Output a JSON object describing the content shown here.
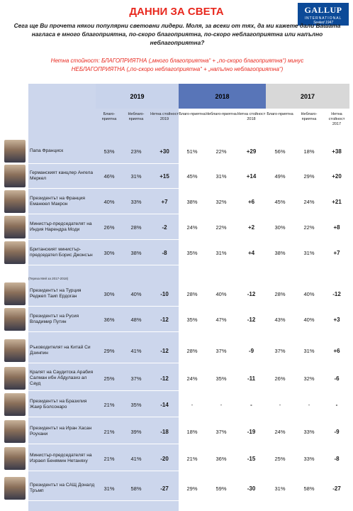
{
  "header": {
    "title": "ДАННИ ЗА СВЕТА",
    "logo": {
      "line1": "GALLUP",
      "line2": "INTERNATIONAL",
      "line3": "Sealed 1947"
    },
    "question": "Сега ще Ви прочета някои популярни световни лидери. Моля, за всеки от тях, да ми кажете дали Вашата нагласа е много благоприятна, по-скоро благоприятна, по-скоро неблагоприятна или напълно неблагоприятна?",
    "note_line1": "Нетна стойност: БЛАГОПРИЯТНА („много благоприятна“ + „по-скоро благоприятна“) минус",
    "note_line2": "НЕБЛАГОПРИЯТНА („по-скоро неблагоприятна“ + „напълно неблагоприятна“)"
  },
  "years": [
    "2019",
    "2018",
    "2017"
  ],
  "columns": {
    "fav": "Благо-приятна",
    "unfav": "Неблаго-приятна",
    "net2019": "Нетна стойност 2019",
    "net2018": "Нетна стойност 2018",
    "net2017": "Нетна стойност 2017"
  },
  "footnote": "(Тереза Мей за 2017-2018)",
  "leaders": [
    {
      "name": "Папа Франциск",
      "v": [
        "53%",
        "23%",
        "+30",
        "51%",
        "22%",
        "+29",
        "56%",
        "18%",
        "+38"
      ]
    },
    {
      "name": "Германският канцлер Ангела Меркел",
      "v": [
        "46%",
        "31%",
        "+15",
        "45%",
        "31%",
        "+14",
        "49%",
        "29%",
        "+20"
      ]
    },
    {
      "name": "Президентът на Франция Еманюел Макрон",
      "v": [
        "40%",
        "33%",
        "+7",
        "38%",
        "32%",
        "+6",
        "45%",
        "24%",
        "+21"
      ]
    },
    {
      "name": "Министър-председателят на Индия Нарендра Моди",
      "v": [
        "26%",
        "28%",
        "-2",
        "24%",
        "22%",
        "+2",
        "30%",
        "22%",
        "+8"
      ]
    },
    {
      "name": "Британският министър-председател Борис Джонсън",
      "v": [
        "30%",
        "38%",
        "-8",
        "35%",
        "31%",
        "+4",
        "38%",
        "31%",
        "+7"
      ]
    },
    {
      "name": "Президентът на Турция Реджеп Таип Ердоган",
      "v": [
        "30%",
        "40%",
        "-10",
        "28%",
        "40%",
        "-12",
        "28%",
        "40%",
        "-12"
      ]
    },
    {
      "name": "Президентът на Русия Владимир Путин",
      "v": [
        "36%",
        "48%",
        "-12",
        "35%",
        "47%",
        "-12",
        "43%",
        "40%",
        "+3"
      ]
    },
    {
      "name": "Ръководителят на Китай Си Дзинпин",
      "v": [
        "29%",
        "41%",
        "-12",
        "28%",
        "37%",
        "-9",
        "37%",
        "31%",
        "+6"
      ]
    },
    {
      "name": "Кралят на Саудитска Арабия Салман ибн Абдулазиз ал Сауд",
      "v": [
        "25%",
        "37%",
        "-12",
        "24%",
        "35%",
        "-11",
        "26%",
        "32%",
        "-6"
      ]
    },
    {
      "name": "Президентът на Бразилия Жаир Болсонаро",
      "v": [
        "21%",
        "35%",
        "-14",
        "-",
        "-",
        "-",
        "-",
        "-",
        "-"
      ]
    },
    {
      "name": "Президентът на Иран Хасан Роухани",
      "v": [
        "21%",
        "39%",
        "-18",
        "18%",
        "37%",
        "-19",
        "24%",
        "33%",
        "-9"
      ]
    },
    {
      "name": "Министър-председателят на Израел Бенямин Нетаняху",
      "v": [
        "21%",
        "41%",
        "-20",
        "21%",
        "36%",
        "-15",
        "25%",
        "33%",
        "-8"
      ]
    },
    {
      "name": "Президентът на САЩ Доналд Тръмп",
      "v": [
        "31%",
        "58%",
        "-27",
        "29%",
        "59%",
        "-30",
        "31%",
        "58%",
        "-27"
      ]
    }
  ]
}
